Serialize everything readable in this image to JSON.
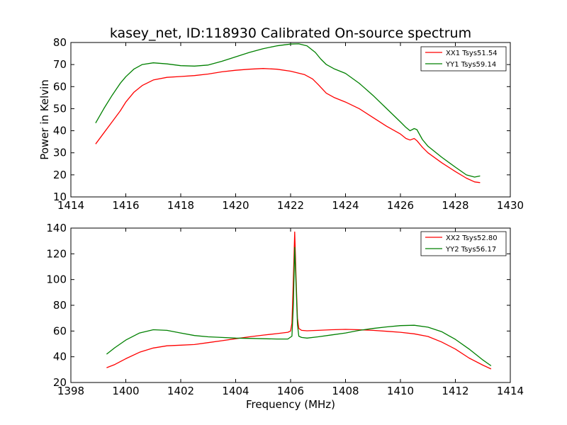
{
  "title": "kasey_net, ID:118930 Calibrated On-source spectrum",
  "chart_data": [
    {
      "type": "line",
      "panel": "top",
      "xlabel": "",
      "ylabel": "Power in Kelvin",
      "xlim": [
        1414,
        1430
      ],
      "ylim": [
        10,
        80
      ],
      "xticks": [
        1414,
        1416,
        1418,
        1420,
        1422,
        1424,
        1426,
        1428,
        1430
      ],
      "yticks": [
        10,
        20,
        30,
        40,
        50,
        60,
        70,
        80
      ],
      "legend": "top-right",
      "series": [
        {
          "name": "XX1 Tsys51.54",
          "color": "#ff0000",
          "x": [
            1414.9,
            1415.2,
            1415.5,
            1415.8,
            1416.0,
            1416.3,
            1416.6,
            1417.0,
            1417.5,
            1418.0,
            1418.5,
            1419.0,
            1419.5,
            1420.0,
            1420.5,
            1421.0,
            1421.5,
            1422.0,
            1422.5,
            1422.8,
            1423.0,
            1423.3,
            1423.6,
            1424.0,
            1424.5,
            1425.0,
            1425.5,
            1426.0,
            1426.2,
            1426.35,
            1426.5,
            1426.6,
            1426.8,
            1427.0,
            1427.5,
            1428.0,
            1428.4,
            1428.7,
            1428.9
          ],
          "y": [
            34,
            39,
            44,
            49,
            53,
            57.5,
            60.5,
            63,
            64.2,
            64.6,
            65,
            65.7,
            66.7,
            67.4,
            67.9,
            68.2,
            67.9,
            67,
            65.5,
            63.5,
            61,
            57,
            55,
            53,
            50,
            46,
            42,
            38.5,
            36.5,
            35.8,
            36.5,
            35.5,
            32.5,
            30,
            25.5,
            21.5,
            18.5,
            16.8,
            16.5
          ]
        },
        {
          "name": "YY1 Tsys59.14",
          "color": "#008000",
          "x": [
            1414.9,
            1415.2,
            1415.5,
            1415.8,
            1416.0,
            1416.3,
            1416.6,
            1417.0,
            1417.5,
            1418.0,
            1418.5,
            1419.0,
            1419.5,
            1420.0,
            1420.5,
            1421.0,
            1421.5,
            1422.0,
            1422.3,
            1422.6,
            1422.9,
            1423.1,
            1423.3,
            1423.6,
            1424.0,
            1424.5,
            1425.0,
            1425.5,
            1426.0,
            1426.2,
            1426.35,
            1426.5,
            1426.6,
            1426.8,
            1427.0,
            1427.5,
            1428.0,
            1428.4,
            1428.7,
            1428.9
          ],
          "y": [
            43.5,
            50,
            56,
            61.5,
            64.5,
            68,
            70,
            70.8,
            70.3,
            69.5,
            69.3,
            69.8,
            71.5,
            73.5,
            75.5,
            77.2,
            78.5,
            79.3,
            79.4,
            78.5,
            75.5,
            72.5,
            70,
            68,
            66,
            61.5,
            56,
            50,
            44,
            41.5,
            40,
            41,
            40.5,
            36,
            33,
            28,
            23.5,
            20,
            19,
            19.5
          ]
        }
      ]
    },
    {
      "type": "line",
      "panel": "bottom",
      "xlabel": "Frequency (MHz)",
      "ylabel": "",
      "xlim": [
        1398,
        1414
      ],
      "ylim": [
        20,
        140
      ],
      "xticks": [
        1398,
        1400,
        1402,
        1404,
        1406,
        1408,
        1410,
        1412,
        1414
      ],
      "yticks": [
        20,
        40,
        60,
        80,
        100,
        120,
        140
      ],
      "legend": "top-right",
      "series": [
        {
          "name": "XX2 Tsys52.80",
          "color": "#ff0000",
          "x": [
            1399.3,
            1399.6,
            1400.0,
            1400.5,
            1401.0,
            1401.5,
            1402.0,
            1402.5,
            1403.0,
            1403.5,
            1404.0,
            1404.5,
            1405.0,
            1405.5,
            1405.9,
            1406.0,
            1406.05,
            1406.1,
            1406.15,
            1406.2,
            1406.25,
            1406.3,
            1406.4,
            1406.6,
            1407.0,
            1407.5,
            1408.0,
            1408.5,
            1409.0,
            1409.5,
            1410.0,
            1410.5,
            1411.0,
            1411.5,
            1412.0,
            1412.5,
            1413.0,
            1413.3
          ],
          "y": [
            31.5,
            34,
            38.5,
            43.5,
            46.8,
            48.5,
            49,
            49.5,
            51,
            52.5,
            54,
            55.5,
            56.8,
            58,
            59,
            60,
            66,
            100,
            137,
            100,
            70,
            62,
            60.5,
            60.2,
            60.5,
            61,
            61.3,
            61,
            60.5,
            59.8,
            59,
            57.8,
            55.8,
            51.5,
            46,
            39,
            33.5,
            30.5
          ]
        },
        {
          "name": "YY2 Tsys56.17",
          "color": "#008000",
          "x": [
            1399.3,
            1399.6,
            1400.0,
            1400.5,
            1401.0,
            1401.5,
            1402.0,
            1402.5,
            1403.0,
            1403.5,
            1404.0,
            1404.5,
            1405.0,
            1405.5,
            1405.9,
            1406.05,
            1406.1,
            1406.15,
            1406.2,
            1406.25,
            1406.3,
            1406.4,
            1406.6,
            1407.0,
            1407.5,
            1408.0,
            1408.5,
            1409.0,
            1409.5,
            1410.0,
            1410.5,
            1411.0,
            1411.5,
            1412.0,
            1412.5,
            1413.0,
            1413.3
          ],
          "y": [
            42,
            47,
            53,
            58.5,
            61,
            60.5,
            58.5,
            56.5,
            55.5,
            55,
            54.5,
            54.3,
            54,
            53.8,
            53.8,
            56,
            80,
            125,
            95,
            65,
            56,
            55,
            54.5,
            55.5,
            57,
            58.5,
            60.5,
            62,
            63.2,
            64.2,
            64.5,
            63,
            59.5,
            53.5,
            46,
            37.5,
            33
          ]
        }
      ]
    }
  ]
}
